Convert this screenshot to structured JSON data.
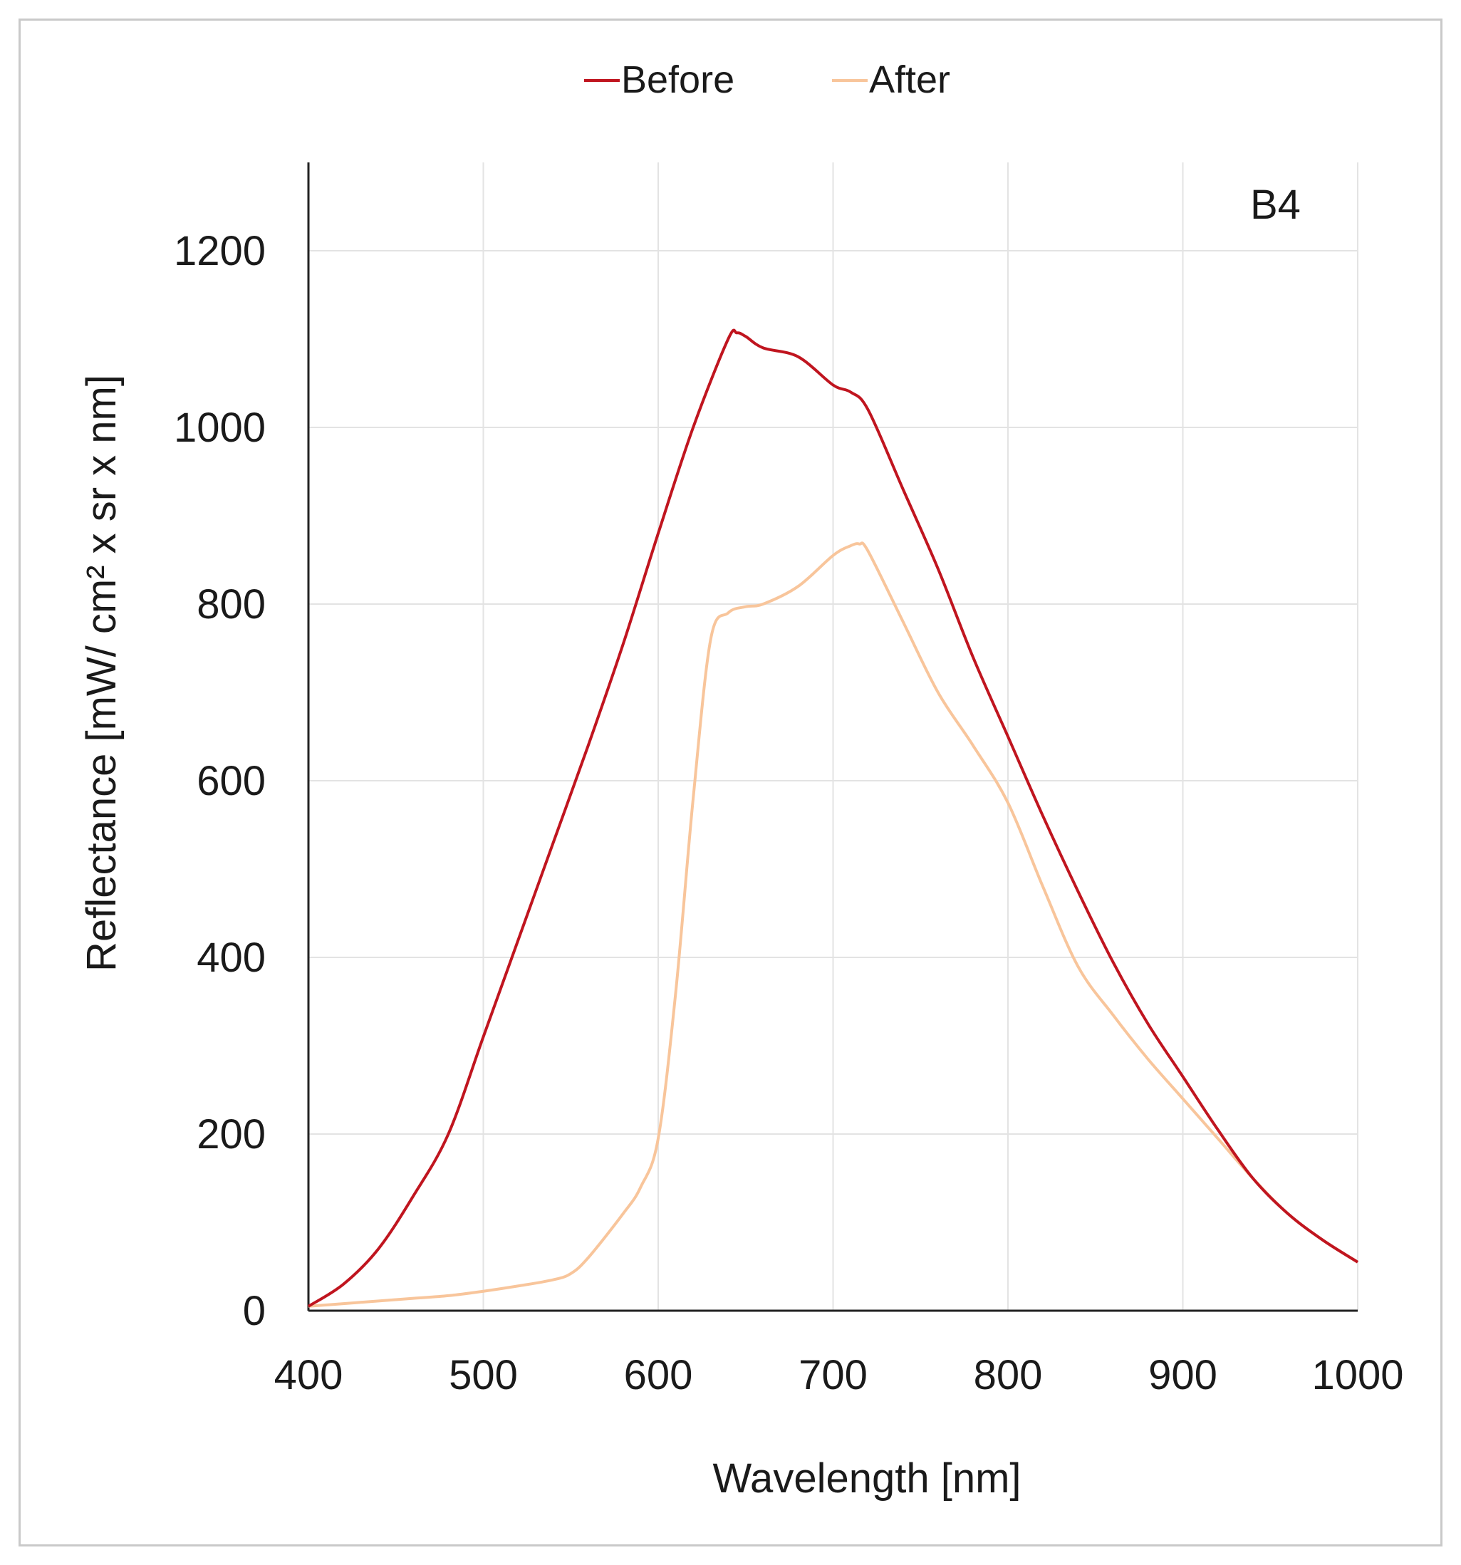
{
  "chart_data": {
    "type": "line",
    "title": "",
    "annotation": "B4",
    "xlabel": "Wavelength [nm]",
    "ylabel": "Reflectance [mW/ cm² x sr x nm]",
    "xlim": [
      400,
      1000
    ],
    "ylim": [
      0,
      1300
    ],
    "xticks": [
      400,
      500,
      600,
      700,
      800,
      900,
      1000
    ],
    "yticks": [
      0,
      200,
      400,
      600,
      800,
      1000,
      1200
    ],
    "grid": true,
    "legend_position": "top-center",
    "series": [
      {
        "name": "Before",
        "color": "#c0151f",
        "x": [
          400,
          420,
          440,
          460,
          480,
          500,
          520,
          540,
          560,
          580,
          600,
          620,
          640,
          645,
          650,
          660,
          680,
          700,
          710,
          720,
          740,
          760,
          780,
          800,
          820,
          840,
          860,
          880,
          900,
          920,
          940,
          960,
          980,
          1000
        ],
        "y": [
          5,
          30,
          70,
          130,
          200,
          310,
          420,
          530,
          640,
          755,
          880,
          1000,
          1100,
          1107,
          1103,
          1090,
          1080,
          1048,
          1040,
          1020,
          930,
          840,
          740,
          650,
          560,
          475,
          395,
          325,
          265,
          205,
          150,
          110,
          80,
          55
        ]
      },
      {
        "name": "After",
        "color": "#f8c59b",
        "x": [
          400,
          420,
          440,
          460,
          480,
          500,
          520,
          540,
          550,
          560,
          580,
          590,
          600,
          610,
          620,
          630,
          640,
          650,
          660,
          680,
          700,
          710,
          715,
          720,
          740,
          760,
          780,
          800,
          820,
          840,
          860,
          880,
          900,
          920,
          940,
          960,
          980,
          1000
        ],
        "y": [
          5,
          8,
          11,
          14,
          17,
          22,
          28,
          35,
          42,
          60,
          110,
          140,
          195,
          360,
          580,
          760,
          790,
          797,
          800,
          820,
          855,
          866,
          868,
          860,
          780,
          700,
          640,
          575,
          480,
          390,
          335,
          285,
          240,
          195,
          150,
          110,
          80,
          55
        ]
      }
    ]
  }
}
